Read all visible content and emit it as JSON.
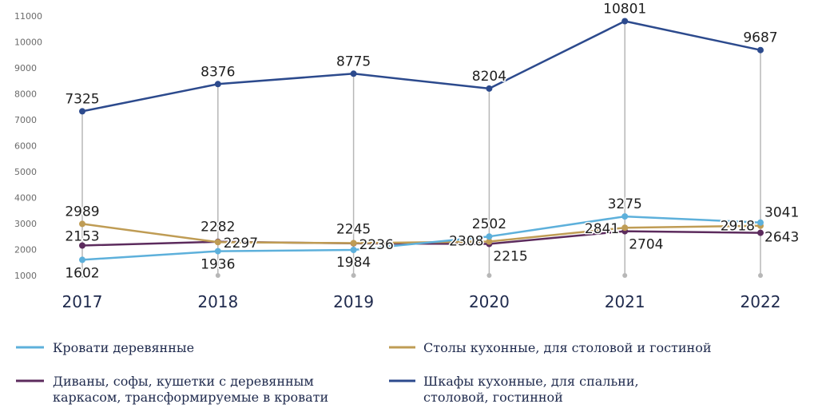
{
  "chart_data": {
    "type": "line",
    "categories": [
      "2017",
      "2018",
      "2019",
      "2020",
      "2021",
      "2022"
    ],
    "series": [
      {
        "name": "Кровати деревянные",
        "color": "#5db0db",
        "values": [
          1602,
          1936,
          1984,
          2502,
          3275,
          3041
        ]
      },
      {
        "name": "Столы кухонные, для столовой и гостиной",
        "color": "#bf9c54",
        "values": [
          2989,
          2282,
          2245,
          2308,
          2841,
          2918
        ]
      },
      {
        "name": "Диваны, софы, кушетки с деревянным каркасом, трансформируемые в кровати",
        "color": "#5c2b5d",
        "values": [
          2153,
          2297,
          2236,
          2215,
          2704,
          2643
        ]
      },
      {
        "name": "Шкафы кухонные, для спальни, столовой, гостинной",
        "color": "#2c4a8d",
        "values": [
          7325,
          8376,
          8775,
          8204,
          10801,
          9687
        ]
      }
    ],
    "yticks": [
      1000,
      2000,
      3000,
      4000,
      5000,
      6000,
      7000,
      8000,
      9000,
      10000,
      11000
    ],
    "ylim": [
      1000,
      11000
    ],
    "grid": false,
    "data_labels": true,
    "drop_lines": true,
    "drop_line_color": "#b7b7b7",
    "legend": "bottom"
  }
}
